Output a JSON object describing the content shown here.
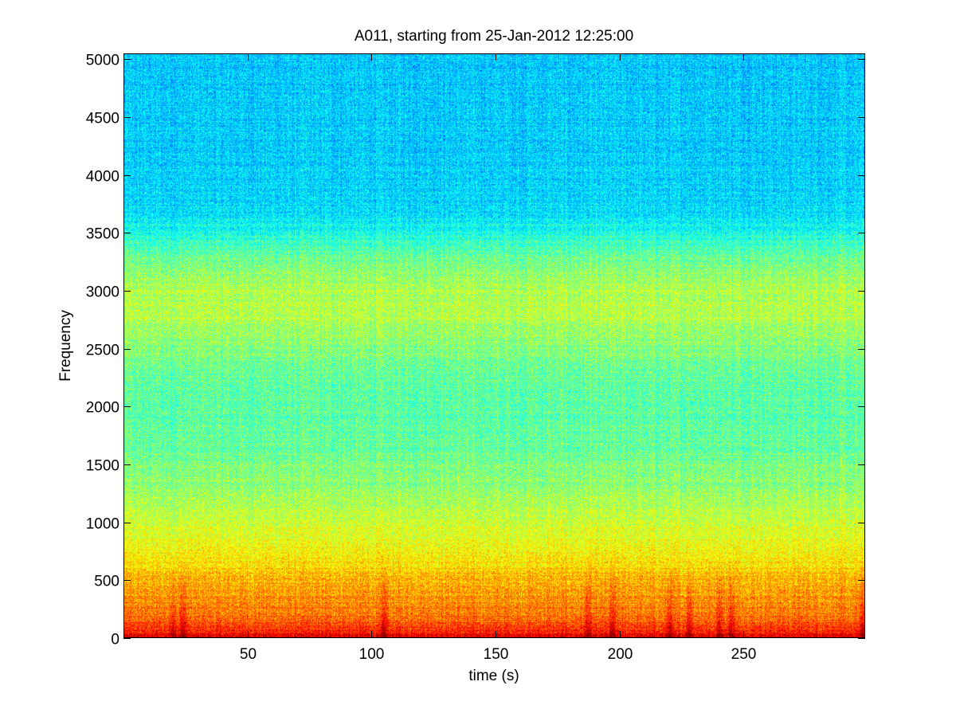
{
  "chart_data": {
    "type": "heatmap",
    "title": "A011, starting from 25-Jan-2012 12:25:00",
    "xlabel": "time (s)",
    "ylabel": "Frequency",
    "xlim": [
      0,
      299
    ],
    "ylim": [
      0,
      5050
    ],
    "x_ticks": [
      50,
      100,
      150,
      200,
      250
    ],
    "y_ticks": [
      0,
      500,
      1000,
      1500,
      2000,
      2500,
      3000,
      3500,
      4000,
      4500,
      5000
    ],
    "x_tick_labels": [
      "50",
      "100",
      "150",
      "200",
      "250"
    ],
    "y_tick_labels": [
      "0",
      "500",
      "1000",
      "1500",
      "2000",
      "2500",
      "3000",
      "3500",
      "4000",
      "4500",
      "5000"
    ],
    "colormap": "jet",
    "grid": false,
    "colors": {
      "low": "#40f0a8",
      "mid": "#ffff00",
      "high": "#ff0000"
    },
    "intensity_profile": {
      "frequency": [
        0,
        50,
        150,
        300,
        500,
        700,
        900,
        1100,
        1300,
        1600,
        1900,
        2200,
        2500,
        2800,
        3000,
        3300,
        3500,
        3700,
        4000,
        5050
      ],
      "level": [
        0.95,
        0.86,
        0.78,
        0.74,
        0.7,
        0.64,
        0.6,
        0.56,
        0.52,
        0.48,
        0.46,
        0.47,
        0.5,
        0.56,
        0.55,
        0.48,
        0.4,
        0.34,
        0.33,
        0.32
      ]
    },
    "transient_events_s": [
      20,
      24,
      105,
      187,
      197,
      220,
      228,
      240,
      245,
      298
    ]
  }
}
